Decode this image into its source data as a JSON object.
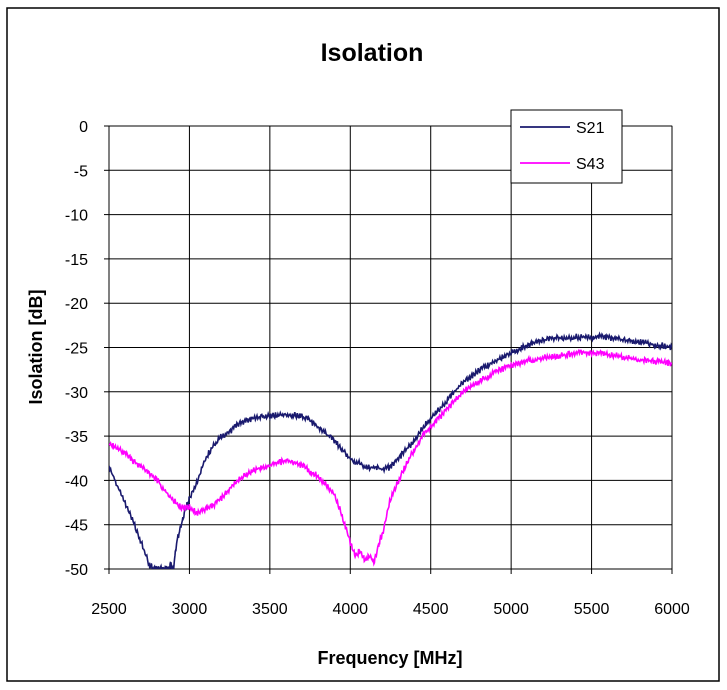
{
  "chart_data": {
    "type": "line",
    "title": "Isolation",
    "xlabel": "Frequency [MHz]",
    "ylabel": "Isolation [dB]",
    "xlim": [
      2500,
      6000
    ],
    "ylim": [
      -50,
      0
    ],
    "x_ticks": [
      2500,
      3000,
      3500,
      4000,
      4500,
      5000,
      5500,
      6000
    ],
    "y_ticks": [
      0,
      -5,
      -10,
      -15,
      -20,
      -25,
      -30,
      -35,
      -40,
      -45,
      -50
    ],
    "grid": true,
    "legend_position": "top-right",
    "series": [
      {
        "name": "S21",
        "color": "#1a1a6e",
        "x": [
          2500,
          2550,
          2600,
          2650,
          2700,
          2750,
          2780,
          2800,
          2820,
          2850,
          2870,
          2880,
          2900,
          2920,
          2950,
          2980,
          3000,
          3050,
          3100,
          3150,
          3200,
          3250,
          3300,
          3350,
          3400,
          3450,
          3500,
          3550,
          3600,
          3650,
          3700,
          3750,
          3800,
          3850,
          3900,
          3950,
          4000,
          4050,
          4100,
          4150,
          4200,
          4250,
          4300,
          4350,
          4400,
          4450,
          4500,
          4550,
          4600,
          4650,
          4700,
          4750,
          4800,
          4850,
          4900,
          4950,
          5000,
          5050,
          5100,
          5150,
          5200,
          5250,
          5300,
          5350,
          5400,
          5450,
          5500,
          5550,
          5600,
          5650,
          5700,
          5750,
          5800,
          5850,
          5900,
          5950,
          6000
        ],
        "y": [
          -38.5,
          -40.5,
          -42.5,
          -44.5,
          -47,
          -49.5,
          -50,
          -50,
          -50,
          -50,
          -50,
          -49.5,
          -50,
          -47,
          -45,
          -43,
          -42,
          -40,
          -37.5,
          -36,
          -35,
          -34.5,
          -33.7,
          -33.3,
          -33,
          -32.8,
          -32.7,
          -32.6,
          -32.5,
          -32.6,
          -32.8,
          -33.3,
          -34,
          -34.8,
          -35.5,
          -36.5,
          -37.5,
          -38,
          -38.5,
          -38.5,
          -38.8,
          -38.5,
          -37.5,
          -36.5,
          -35.5,
          -34,
          -33,
          -32,
          -31,
          -30,
          -29,
          -28.3,
          -27.6,
          -27,
          -26.5,
          -26,
          -25.5,
          -25.2,
          -24.8,
          -24.5,
          -24.2,
          -24,
          -23.9,
          -23.9,
          -23.8,
          -23.8,
          -23.8,
          -23.8,
          -23.9,
          -24,
          -24.2,
          -24.3,
          -24.4,
          -24.5,
          -24.7,
          -24.8,
          -25
        ]
      },
      {
        "name": "S43",
        "color": "#ff00ff",
        "x": [
          2500,
          2550,
          2600,
          2650,
          2700,
          2750,
          2800,
          2850,
          2900,
          2950,
          3000,
          3050,
          3100,
          3150,
          3200,
          3250,
          3300,
          3350,
          3400,
          3450,
          3500,
          3550,
          3600,
          3650,
          3700,
          3750,
          3800,
          3850,
          3900,
          3950,
          4000,
          4030,
          4060,
          4090,
          4120,
          4150,
          4180,
          4200,
          4250,
          4300,
          4350,
          4400,
          4450,
          4500,
          4550,
          4600,
          4650,
          4700,
          4750,
          4800,
          4850,
          4900,
          4950,
          5000,
          5050,
          5100,
          5150,
          5200,
          5250,
          5300,
          5350,
          5400,
          5450,
          5500,
          5550,
          5600,
          5650,
          5700,
          5750,
          5800,
          5850,
          5900,
          5950,
          6000
        ],
        "y": [
          -35.8,
          -36.3,
          -37,
          -37.8,
          -38.5,
          -39.2,
          -40,
          -41.2,
          -42.2,
          -43,
          -43,
          -43.8,
          -43.3,
          -42.8,
          -42,
          -41,
          -40,
          -39.3,
          -38.8,
          -38.5,
          -38.3,
          -38,
          -37.8,
          -38,
          -38.3,
          -39,
          -39.5,
          -40.5,
          -41.5,
          -44,
          -47,
          -48.5,
          -48,
          -49,
          -48.5,
          -49.2,
          -47,
          -46,
          -42,
          -40,
          -38,
          -36.5,
          -35,
          -34,
          -33,
          -32,
          -31,
          -30,
          -29.3,
          -28.8,
          -28.3,
          -27.8,
          -27.4,
          -27,
          -26.8,
          -26.5,
          -26.3,
          -26.1,
          -26,
          -25.9,
          -25.8,
          -25.7,
          -25.6,
          -25.6,
          -25.7,
          -25.8,
          -25.9,
          -26,
          -26.2,
          -26.4,
          -26.5,
          -26.6,
          -26.7,
          -26.8
        ]
      }
    ]
  }
}
